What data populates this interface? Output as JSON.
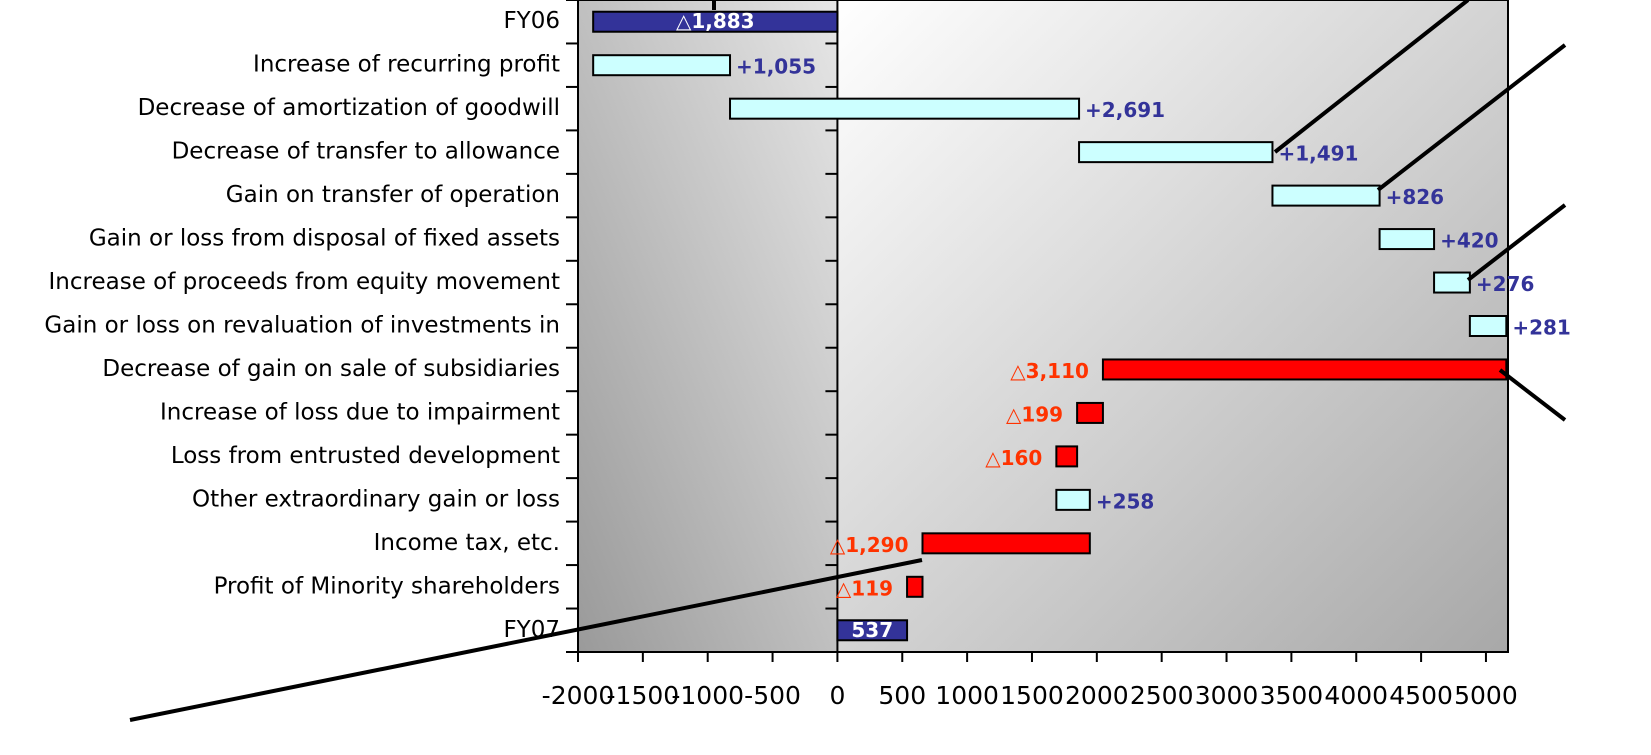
{
  "chart_data": {
    "type": "waterfall",
    "categories": [
      "FY06",
      "Increase of recurring profit",
      "Decrease of amortization of goodwill",
      "Decrease of transfer to allowance",
      "Gain on transfer of operation",
      "Gain or loss from disposal of fixed assets",
      "Increase of proceeds from equity movement",
      "Gain or loss on revaluation of investments in",
      "Decrease of gain on sale of subsidiaries",
      "Increase of loss due to impairment",
      "Loss from entrusted development",
      "Other extraordinary gain or loss",
      "Income tax, etc.",
      "Profit of Minority shareholders",
      "FY07"
    ],
    "values": [
      -1883,
      1055,
      2691,
      1491,
      826,
      420,
      276,
      281,
      -3110,
      -199,
      -160,
      258,
      -1290,
      -119,
      537
    ],
    "value_labels": [
      "△1,883",
      "+1,055",
      "+2,691",
      "+1,491",
      "+826",
      "+420",
      "+276",
      "+281",
      "△3,110",
      "△199",
      "△160",
      "+258",
      "△1,290",
      "△119",
      "537"
    ],
    "colors": [
      "#333399",
      "#ccffff",
      "#ccffff",
      "#ccffff",
      "#ccffff",
      "#ccffff",
      "#ccffff",
      "#ccffff",
      "#ff0000",
      "#ff0000",
      "#ff0000",
      "#ccffff",
      "#ff0000",
      "#ff0000",
      "#333399"
    ],
    "xlim": [
      -2000,
      5170
    ],
    "xticks": [
      -2000,
      -1500,
      -1000,
      -500,
      0,
      500,
      1000,
      1500,
      2000,
      2500,
      3000,
      3500,
      4000,
      4500,
      5000
    ]
  }
}
